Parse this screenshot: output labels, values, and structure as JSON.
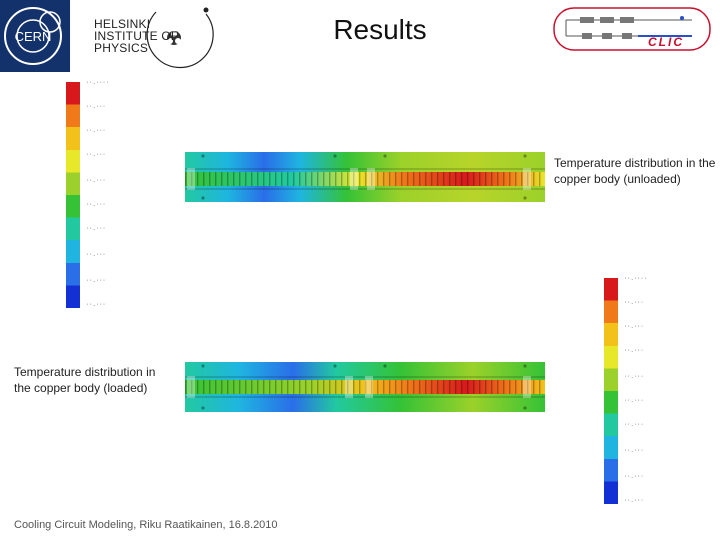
{
  "slide": {
    "title": "Results",
    "footer": "Cooling Circuit Modeling, Riku Raatikainen, 16.8.2010"
  },
  "logos": {
    "cern": {
      "text": "CERN",
      "icon": "cern-logo-icon",
      "bg_color": "#13326b"
    },
    "hip": {
      "lines": [
        "HELSINKI",
        "INSTITUTE OF",
        "PHYSICS"
      ],
      "icon": "hip-logo-icon"
    },
    "clic": {
      "text": "CLIC",
      "icon": "clic-logo-icon",
      "accent_color": "#c8102e"
    }
  },
  "figures": {
    "unloaded": {
      "caption": "Temperature distribution in the copper body (unloaded)"
    },
    "loaded": {
      "caption": "Temperature distribution in the copper body (loaded)"
    }
  },
  "color_scale": {
    "colors": [
      "#d7191c",
      "#f07a1a",
      "#f2c21b",
      "#e8e82a",
      "#9bd12a",
      "#35c236",
      "#22c9a0",
      "#1fb5e0",
      "#2a6ee8",
      "#1230d4"
    ]
  }
}
